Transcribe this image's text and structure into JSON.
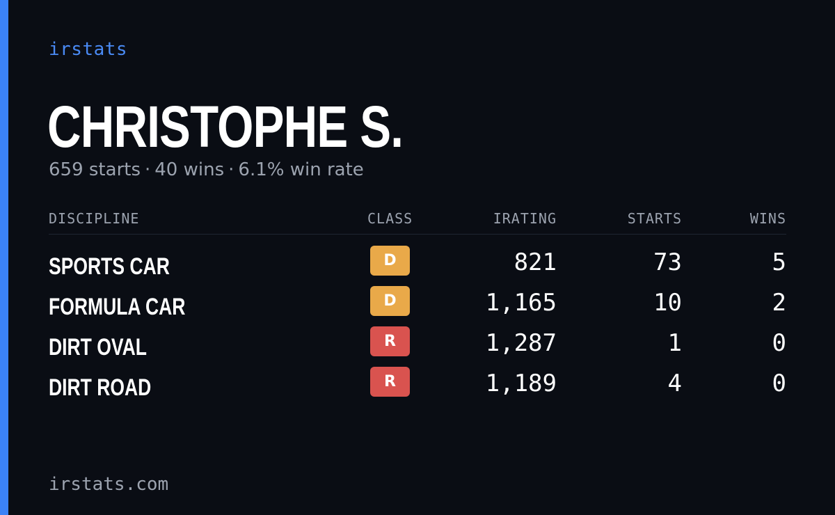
{
  "brand": "irstats",
  "driver": {
    "name": "CHRISTOPHE S.",
    "starts_text": "659 starts",
    "wins_text": "40 wins",
    "winrate_text": "6.1% win rate",
    "separator": "·"
  },
  "table": {
    "headers": {
      "discipline": "DISCIPLINE",
      "class": "CLASS",
      "irating": "IRATING",
      "starts": "STARTS",
      "wins": "WINS"
    },
    "rows": [
      {
        "discipline": "SPORTS CAR",
        "class": "D",
        "class_color": "#e9a949",
        "irating": "821",
        "starts": "73",
        "wins": "5"
      },
      {
        "discipline": "FORMULA CAR",
        "class": "D",
        "class_color": "#e9a949",
        "irating": "1,165",
        "starts": "10",
        "wins": "2"
      },
      {
        "discipline": "DIRT OVAL",
        "class": "R",
        "class_color": "#d9534f",
        "irating": "1,287",
        "starts": "1",
        "wins": "0"
      },
      {
        "discipline": "DIRT ROAD",
        "class": "R",
        "class_color": "#d9534f",
        "irating": "1,189",
        "starts": "4",
        "wins": "0"
      }
    ]
  },
  "footer": "irstats.com",
  "colors": {
    "accent": "#3b82f6",
    "background": "#0a0d14"
  }
}
